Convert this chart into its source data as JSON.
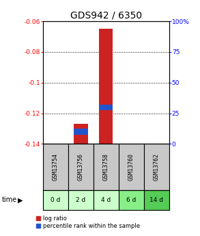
{
  "title": "GDS942 / 6350",
  "samples": [
    "GSM13754",
    "GSM13756",
    "GSM13758",
    "GSM13760",
    "GSM13762"
  ],
  "time_labels": [
    "0 d",
    "2 d",
    "4 d",
    "6 d",
    "14 d"
  ],
  "ylim": [
    -0.14,
    -0.06
  ],
  "yticks": [
    -0.14,
    -0.12,
    -0.1,
    -0.08,
    -0.06
  ],
  "y2ticks": [
    0,
    25,
    50,
    75,
    100
  ],
  "y2labels": [
    "0",
    "25",
    "50",
    "75",
    "100%"
  ],
  "log_ratio": [
    null,
    -0.127,
    -0.065,
    null,
    null
  ],
  "log_ratio_base": -0.14,
  "percentile_rank_pct": [
    null,
    10,
    30,
    null,
    null
  ],
  "bar_width": 0.55,
  "red_color": "#cc2222",
  "blue_color": "#2255cc",
  "bg_color": "#ffffff",
  "gray_color": "#c8c8c8",
  "green_colors": [
    "#ccffcc",
    "#ccffcc",
    "#ccffcc",
    "#88ee88",
    "#55cc55"
  ],
  "title_fontsize": 10,
  "tick_fontsize": 6.5,
  "sample_fontsize": 6,
  "legend_fontsize": 6
}
